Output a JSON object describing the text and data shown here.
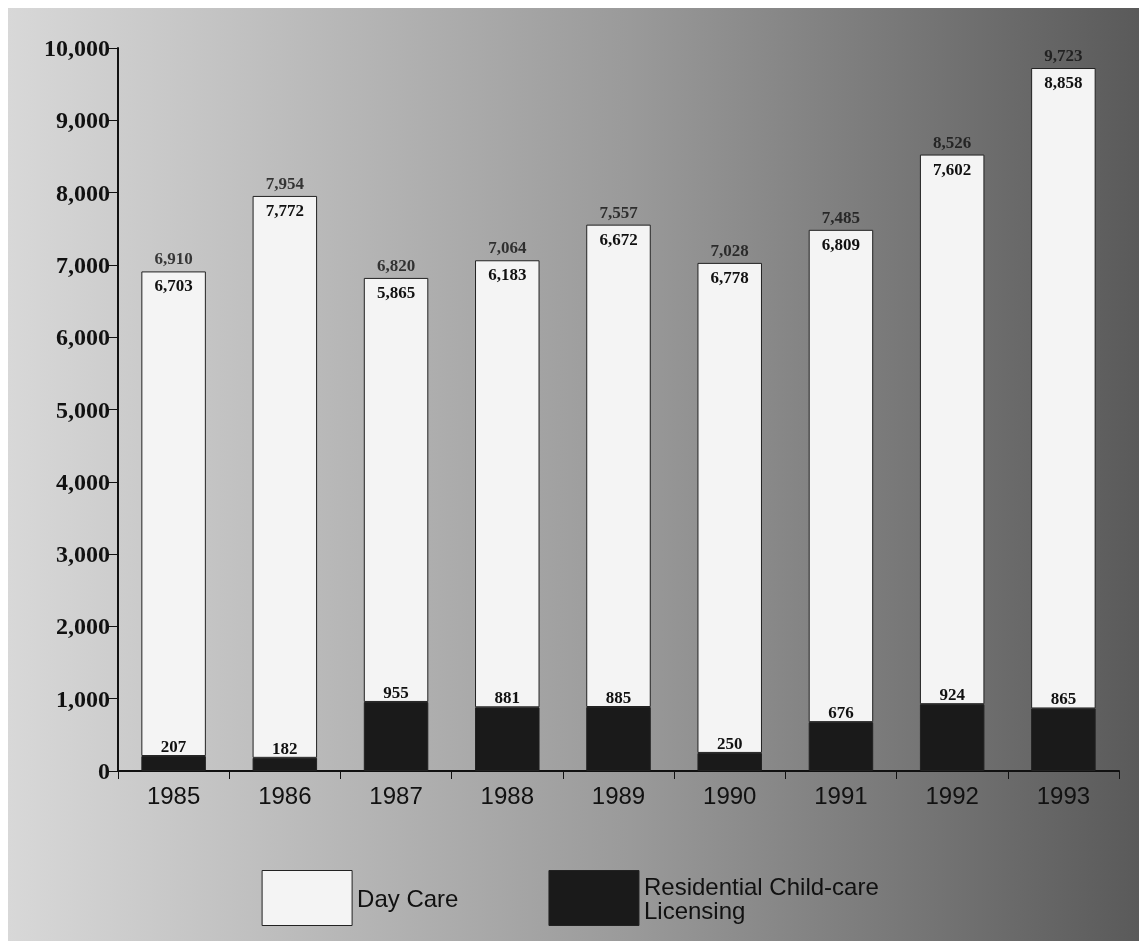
{
  "chart_data": {
    "type": "bar",
    "stacked": true,
    "categories": [
      "1985",
      "1986",
      "1987",
      "1988",
      "1989",
      "1990",
      "1991",
      "1992",
      "1993"
    ],
    "series": [
      {
        "name": "Residential Child-care Licensing",
        "color": "#1a1a1a",
        "values": [
          207,
          182,
          955,
          881,
          885,
          250,
          676,
          924,
          865
        ],
        "value_labels": [
          "207",
          "182",
          "955",
          "881",
          "885",
          "250",
          "676",
          "924",
          "865"
        ]
      },
      {
        "name": "Day Care",
        "color": "#f4f4f4",
        "values": [
          6703,
          7772,
          5865,
          6183,
          6672,
          6778,
          6809,
          7602,
          8858
        ],
        "value_labels": [
          "6,703",
          "7,772",
          "5,865",
          "6,183",
          "6,672",
          "6,778",
          "6,809",
          "7,602",
          "8,858"
        ]
      }
    ],
    "totals": [
      "6,910",
      "7,954",
      "6,820",
      "7,064",
      "7,557",
      "7,028",
      "7,485",
      "8,526",
      "9,723"
    ],
    "ylim": [
      0,
      10000
    ],
    "yticks": [
      {
        "value": 0,
        "label": "0"
      },
      {
        "value": 1000,
        "label": "1,000"
      },
      {
        "value": 2000,
        "label": "2,000"
      },
      {
        "value": 3000,
        "label": "3,000"
      },
      {
        "value": 4000,
        "label": "4,000"
      },
      {
        "value": 5000,
        "label": "5,000"
      },
      {
        "value": 6000,
        "label": "6,000"
      },
      {
        "value": 7000,
        "label": "7,000"
      },
      {
        "value": 8000,
        "label": "8,000"
      },
      {
        "value": 9000,
        "label": "9,000"
      },
      {
        "value": 10000,
        "label": "10,000"
      }
    ],
    "grid": false,
    "legend": "bottom"
  }
}
